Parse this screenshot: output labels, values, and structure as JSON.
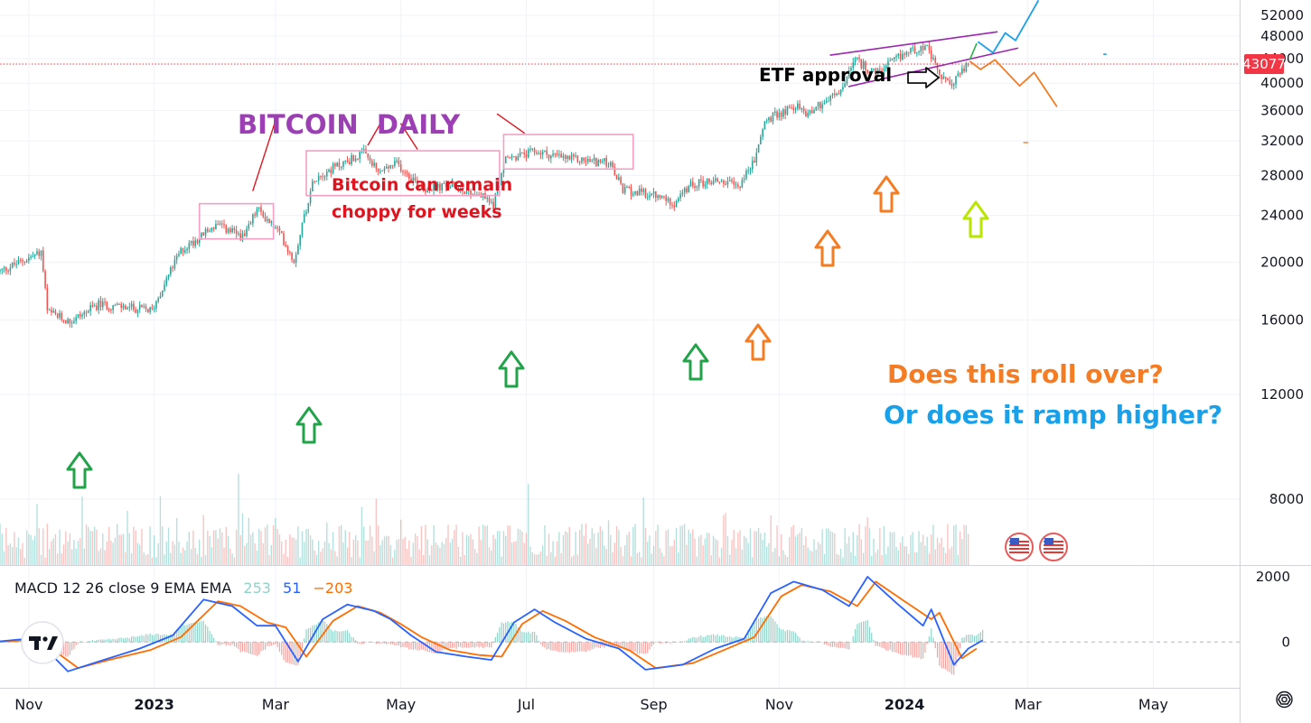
{
  "chart_data": {
    "type": "candlestick",
    "title": "BITCOIN  DAILY",
    "price_axis": {
      "ticks": [
        8000,
        12000,
        16000,
        20000,
        24000,
        28000,
        32000,
        36000,
        40000,
        44000,
        48000,
        52000
      ],
      "range": [
        6200,
        55200
      ],
      "last_price": "43077",
      "last_price_value": 43077
    },
    "time_axis": {
      "labels": [
        {
          "text": "Nov",
          "bold": false
        },
        {
          "text": "2023",
          "bold": true
        },
        {
          "text": "Mar",
          "bold": false
        },
        {
          "text": "May",
          "bold": false
        },
        {
          "text": "Jul",
          "bold": false
        },
        {
          "text": "Sep",
          "bold": false
        },
        {
          "text": "Nov",
          "bold": false
        },
        {
          "text": "2024",
          "bold": true
        },
        {
          "text": "Mar",
          "bold": false
        },
        {
          "text": "May",
          "bold": false
        }
      ],
      "start_date": "2022-10-18",
      "end_date": "2024-06-12"
    },
    "price_path": [
      [
        "2022-10-18",
        19300
      ],
      [
        "2022-11-07",
        20800
      ],
      [
        "2022-11-10",
        16500
      ],
      [
        "2022-11-21",
        15900
      ],
      [
        "2022-12-05",
        17000
      ],
      [
        "2022-12-31",
        16600
      ],
      [
        "2023-01-14",
        20900
      ],
      [
        "2023-01-31",
        23100
      ],
      [
        "2023-02-14",
        22000
      ],
      [
        "2023-02-20",
        24600
      ],
      [
        "2023-03-03",
        22400
      ],
      [
        "2023-03-10",
        20100
      ],
      [
        "2023-03-20",
        27800
      ],
      [
        "2023-04-13",
        30500
      ],
      [
        "2023-04-20",
        28300
      ],
      [
        "2023-04-29",
        29300
      ],
      [
        "2023-05-12",
        26600
      ],
      [
        "2023-05-26",
        26900
      ],
      [
        "2023-06-10",
        25800
      ],
      [
        "2023-06-15",
        25000
      ],
      [
        "2023-06-21",
        29800
      ],
      [
        "2023-07-06",
        30700
      ],
      [
        "2023-07-20",
        29900
      ],
      [
        "2023-08-10",
        29400
      ],
      [
        "2023-08-17",
        26500
      ],
      [
        "2023-09-01",
        25900
      ],
      [
        "2023-09-11",
        25200
      ],
      [
        "2023-09-20",
        27100
      ],
      [
        "2023-10-02",
        27500
      ],
      [
        "2023-10-12",
        26800
      ],
      [
        "2023-10-20",
        29600
      ],
      [
        "2023-10-25",
        34500
      ],
      [
        "2023-11-09",
        36700
      ],
      [
        "2023-11-14",
        35600
      ],
      [
        "2023-12-01",
        38700
      ],
      [
        "2023-12-08",
        43700
      ],
      [
        "2023-12-18",
        41400
      ],
      [
        "2024-01-02",
        45100
      ],
      [
        "2024-01-11",
        46300
      ],
      [
        "2024-01-18",
        41300
      ],
      [
        "2024-01-23",
        39600
      ],
      [
        "2024-02-01",
        43077
      ]
    ],
    "volume_extent": [
      "2022-10-18",
      "2024-02-01"
    ],
    "macd": {
      "label": "MACD 12 26 close 9 EMA EMA",
      "histogram_value": "253",
      "macd_value": "51",
      "signal_value": "−203",
      "axis_ticks": [
        "2000",
        "0"
      ],
      "macd_line": [
        [
          "2022-10-18",
          20
        ],
        [
          "2022-11-04",
          120
        ],
        [
          "2022-11-20",
          -900
        ],
        [
          "2022-12-05",
          -600
        ],
        [
          "2022-12-25",
          -200
        ],
        [
          "2023-01-10",
          200
        ],
        [
          "2023-01-25",
          1300
        ],
        [
          "2023-02-08",
          1100
        ],
        [
          "2023-02-20",
          500
        ],
        [
          "2023-03-01",
          500
        ],
        [
          "2023-03-12",
          -600
        ],
        [
          "2023-03-24",
          700
        ],
        [
          "2023-04-05",
          1150
        ],
        [
          "2023-04-18",
          950
        ],
        [
          "2023-04-26",
          700
        ],
        [
          "2023-05-06",
          200
        ],
        [
          "2023-05-18",
          -300
        ],
        [
          "2023-06-02",
          -450
        ],
        [
          "2023-06-14",
          -550
        ],
        [
          "2023-06-25",
          600
        ],
        [
          "2023-07-05",
          1000
        ],
        [
          "2023-07-15",
          600
        ],
        [
          "2023-07-30",
          100
        ],
        [
          "2023-08-15",
          -200
        ],
        [
          "2023-08-28",
          -850
        ],
        [
          "2023-09-15",
          -700
        ],
        [
          "2023-10-01",
          -200
        ],
        [
          "2023-10-15",
          100
        ],
        [
          "2023-10-28",
          1500
        ],
        [
          "2023-11-08",
          1850
        ],
        [
          "2023-11-22",
          1600
        ],
        [
          "2023-12-05",
          1100
        ],
        [
          "2023-12-14",
          2000
        ],
        [
          "2023-12-28",
          1200
        ],
        [
          "2024-01-10",
          500
        ],
        [
          "2024-01-14",
          1000
        ],
        [
          "2024-01-25",
          -700
        ],
        [
          "2024-02-01",
          -200
        ],
        [
          "2024-02-08",
          51
        ]
      ],
      "signal_line": [
        [
          "2022-10-18",
          10
        ],
        [
          "2022-11-06",
          80
        ],
        [
          "2022-11-25",
          -800
        ],
        [
          "2022-12-10",
          -550
        ],
        [
          "2022-12-30",
          -250
        ],
        [
          "2023-01-14",
          150
        ],
        [
          "2023-02-01",
          1250
        ],
        [
          "2023-02-12",
          1100
        ],
        [
          "2023-02-25",
          600
        ],
        [
          "2023-03-06",
          450
        ],
        [
          "2023-03-16",
          -450
        ],
        [
          "2023-03-29",
          650
        ],
        [
          "2023-04-10",
          1100
        ],
        [
          "2023-04-21",
          900
        ],
        [
          "2023-05-01",
          550
        ],
        [
          "2023-05-11",
          150
        ],
        [
          "2023-05-25",
          -250
        ],
        [
          "2023-06-08",
          -400
        ],
        [
          "2023-06-19",
          -450
        ],
        [
          "2023-06-29",
          550
        ],
        [
          "2023-07-09",
          950
        ],
        [
          "2023-07-20",
          650
        ],
        [
          "2023-08-03",
          150
        ],
        [
          "2023-08-20",
          -250
        ],
        [
          "2023-09-02",
          -800
        ],
        [
          "2023-09-20",
          -650
        ],
        [
          "2023-10-05",
          -250
        ],
        [
          "2023-10-20",
          150
        ],
        [
          "2023-11-02",
          1400
        ],
        [
          "2023-11-12",
          1750
        ],
        [
          "2023-11-26",
          1550
        ],
        [
          "2023-12-09",
          1100
        ],
        [
          "2023-12-18",
          1850
        ],
        [
          "2024-01-01",
          1250
        ],
        [
          "2024-01-14",
          700
        ],
        [
          "2024-01-18",
          900
        ],
        [
          "2024-01-29",
          -500
        ],
        [
          "2024-02-05",
          -203
        ]
      ],
      "hist_range": [
        -1350,
        2250
      ]
    },
    "annotations": {
      "chop_note_line1": "Bitcoin can remain",
      "chop_note_line2": "choppy for weeks",
      "etf_label": "ETF approval",
      "question_roll": "Does this roll over?",
      "question_ramp": "Or does it ramp higher?"
    },
    "colors": {
      "up": "#26a69a",
      "down": "#ef5350",
      "title": "#9c3fb5",
      "note": "#e0141e",
      "orange": "#f57c22",
      "blue": "#1aa0e8",
      "green_arrow": "#22a34a",
      "lime_arrow": "#b8e600",
      "channel": "#9c27b0",
      "box": "#f2a0c4",
      "macd_line": "#2962ff",
      "signal_line": "#ff6d00",
      "price_label_bg": "#f23645"
    },
    "icons": [
      "tradingview-logo-icon",
      "us-flag-event-icon",
      "settings-gear-icon"
    ]
  }
}
